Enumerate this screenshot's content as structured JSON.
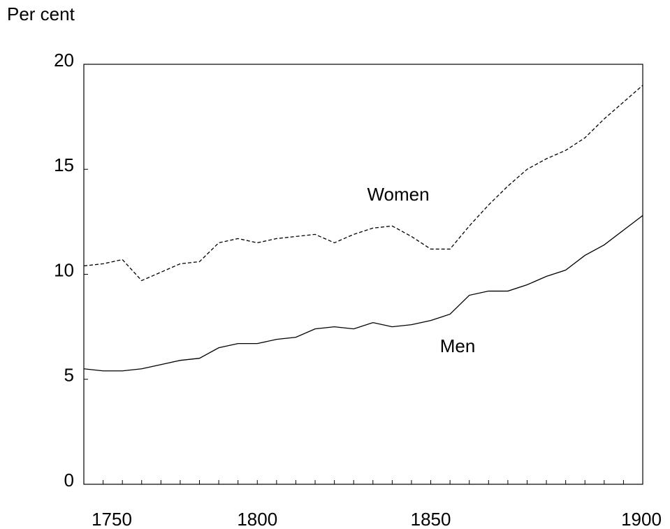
{
  "chart_data": {
    "type": "line",
    "y_label": "Per cent",
    "categories": [
      "1750",
      null,
      null,
      null,
      null,
      null,
      null,
      null,
      null,
      "1800",
      null,
      null,
      null,
      null,
      null,
      null,
      null,
      null,
      "1850",
      null,
      null,
      null,
      null,
      null,
      null,
      null,
      null,
      null,
      null,
      "1900"
    ],
    "series": [
      {
        "name": "Women",
        "color": "#000000",
        "style": "dashed",
        "values": [
          10.4,
          10.5,
          10.7,
          9.7,
          10.1,
          10.5,
          10.6,
          11.5,
          11.7,
          11.5,
          11.7,
          11.8,
          11.9,
          11.5,
          11.9,
          12.2,
          12.3,
          11.8,
          11.2,
          11.2,
          12.3,
          13.3,
          14.2,
          15.0,
          15.5,
          15.9,
          16.5,
          17.4,
          18.2,
          19.0
        ]
      },
      {
        "name": "Men",
        "color": "#000000",
        "style": "solid",
        "values": [
          5.5,
          5.4,
          5.4,
          5.5,
          5.7,
          5.9,
          6.0,
          6.5,
          6.7,
          6.7,
          6.9,
          7.0,
          7.4,
          7.5,
          7.4,
          7.7,
          7.5,
          7.6,
          7.8,
          8.1,
          9.0,
          9.2,
          9.2,
          9.5,
          9.9,
          10.2,
          10.9,
          11.4,
          12.1,
          12.8
        ]
      }
    ],
    "ylim": [
      0,
      20
    ],
    "yticks": [
      0,
      5,
      10,
      15,
      20
    ],
    "grid": false
  }
}
